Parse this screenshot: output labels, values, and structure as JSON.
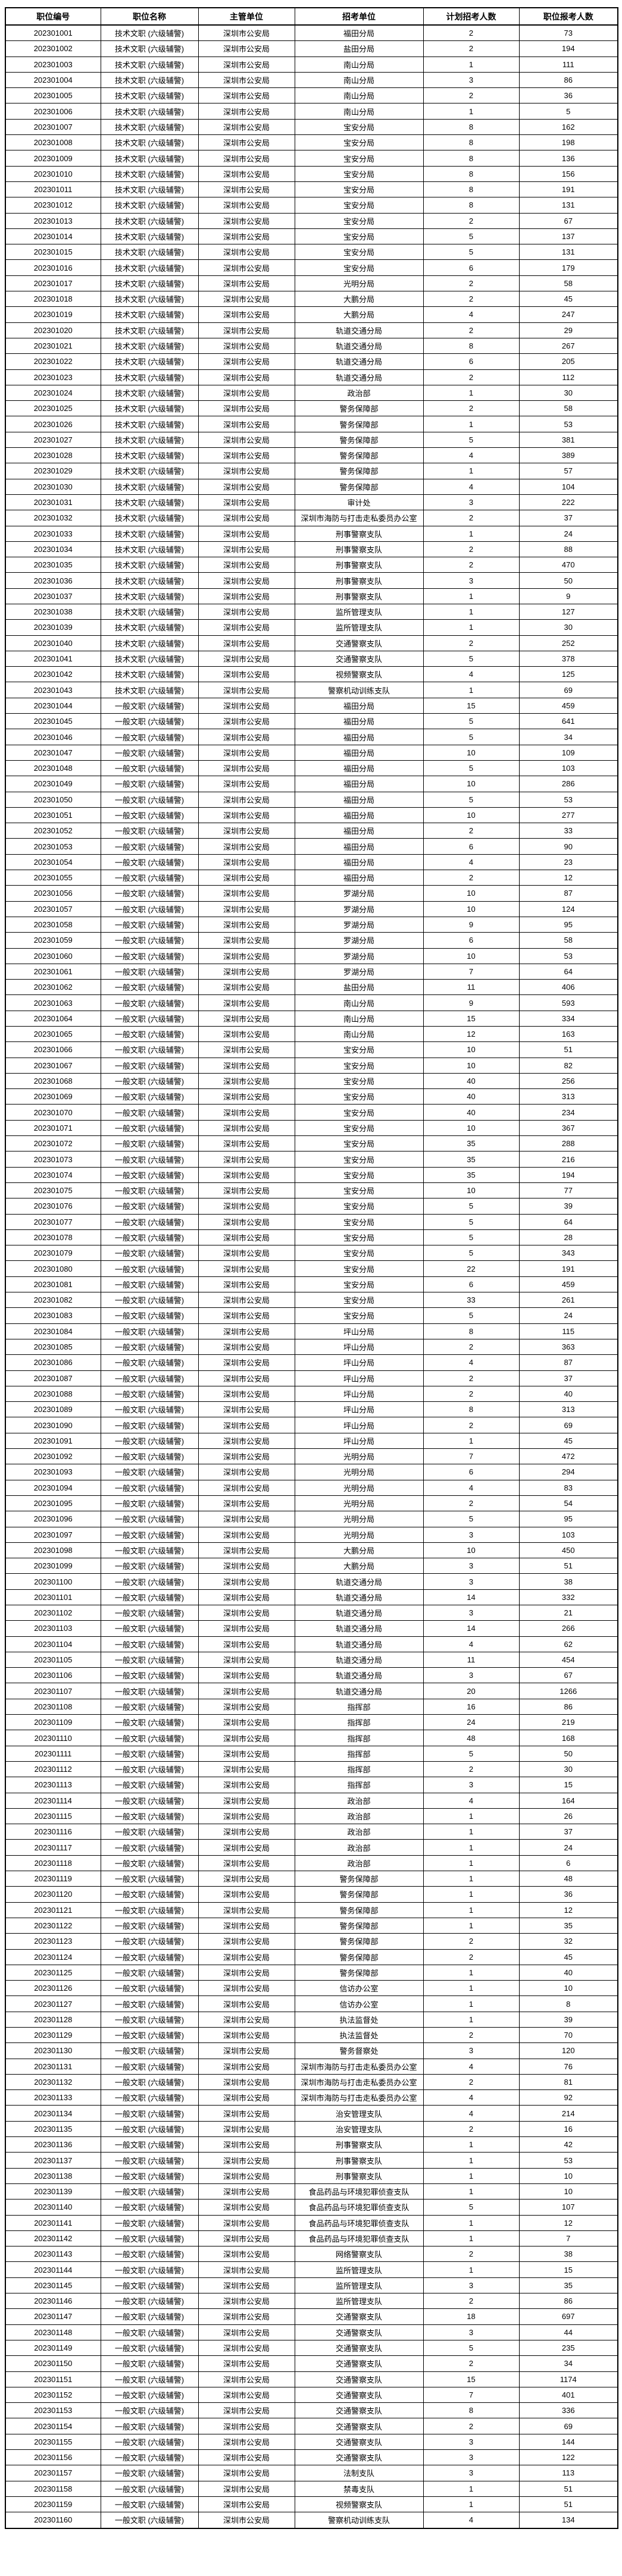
{
  "colors": {
    "background": "#ffffff",
    "border": "#000000",
    "text": "#000000"
  },
  "table": {
    "headers": [
      "职位编号",
      "职位名称",
      "主管单位",
      "招考单位",
      "计划招考人数",
      "职位报考人数"
    ],
    "org": "深圳市公安局",
    "job_titles": {
      "T": "技术文职 (六级辅警)",
      "G": "一般文职 (六级辅警)"
    },
    "rows": [
      [
        "202301001",
        "T",
        "福田分局",
        2,
        73
      ],
      [
        "202301002",
        "T",
        "盐田分局",
        2,
        194
      ],
      [
        "202301003",
        "T",
        "南山分局",
        1,
        111
      ],
      [
        "202301004",
        "T",
        "南山分局",
        3,
        86
      ],
      [
        "202301005",
        "T",
        "南山分局",
        2,
        36
      ],
      [
        "202301006",
        "T",
        "南山分局",
        1,
        5
      ],
      [
        "202301007",
        "T",
        "宝安分局",
        8,
        162
      ],
      [
        "202301008",
        "T",
        "宝安分局",
        8,
        198
      ],
      [
        "202301009",
        "T",
        "宝安分局",
        8,
        136
      ],
      [
        "202301010",
        "T",
        "宝安分局",
        8,
        156
      ],
      [
        "202301011",
        "T",
        "宝安分局",
        8,
        191
      ],
      [
        "202301012",
        "T",
        "宝安分局",
        8,
        131
      ],
      [
        "202301013",
        "T",
        "宝安分局",
        2,
        67
      ],
      [
        "202301014",
        "T",
        "宝安分局",
        5,
        137
      ],
      [
        "202301015",
        "T",
        "宝安分局",
        5,
        131
      ],
      [
        "202301016",
        "T",
        "宝安分局",
        6,
        179
      ],
      [
        "202301017",
        "T",
        "光明分局",
        2,
        58
      ],
      [
        "202301018",
        "T",
        "大鹏分局",
        2,
        45
      ],
      [
        "202301019",
        "T",
        "大鹏分局",
        4,
        247
      ],
      [
        "202301020",
        "T",
        "轨道交通分局",
        2,
        29
      ],
      [
        "202301021",
        "T",
        "轨道交通分局",
        8,
        267
      ],
      [
        "202301022",
        "T",
        "轨道交通分局",
        6,
        205
      ],
      [
        "202301023",
        "T",
        "轨道交通分局",
        2,
        112
      ],
      [
        "202301024",
        "T",
        "政治部",
        1,
        30
      ],
      [
        "202301025",
        "T",
        "警务保障部",
        2,
        58
      ],
      [
        "202301026",
        "T",
        "警务保障部",
        1,
        53
      ],
      [
        "202301027",
        "T",
        "警务保障部",
        5,
        381
      ],
      [
        "202301028",
        "T",
        "警务保障部",
        4,
        389
      ],
      [
        "202301029",
        "T",
        "警务保障部",
        1,
        57
      ],
      [
        "202301030",
        "T",
        "警务保障部",
        4,
        104
      ],
      [
        "202301031",
        "T",
        "审计处",
        3,
        222
      ],
      [
        "202301032",
        "T",
        "深圳市海防与打击走私委员办公室",
        2,
        37
      ],
      [
        "202301033",
        "T",
        "刑事警察支队",
        1,
        24
      ],
      [
        "202301034",
        "T",
        "刑事警察支队",
        2,
        88
      ],
      [
        "202301035",
        "T",
        "刑事警察支队",
        2,
        470
      ],
      [
        "202301036",
        "T",
        "刑事警察支队",
        3,
        50
      ],
      [
        "202301037",
        "T",
        "刑事警察支队",
        1,
        9
      ],
      [
        "202301038",
        "T",
        "监所管理支队",
        1,
        127
      ],
      [
        "202301039",
        "T",
        "监所管理支队",
        1,
        30
      ],
      [
        "202301040",
        "T",
        "交通警察支队",
        2,
        252
      ],
      [
        "202301041",
        "T",
        "交通警察支队",
        5,
        378
      ],
      [
        "202301042",
        "T",
        "视频警察支队",
        4,
        125
      ],
      [
        "202301043",
        "T",
        "警察机动训练支队",
        1,
        69
      ],
      [
        "202301044",
        "G",
        "福田分局",
        15,
        459
      ],
      [
        "202301045",
        "G",
        "福田分局",
        5,
        641
      ],
      [
        "202301046",
        "G",
        "福田分局",
        5,
        34
      ],
      [
        "202301047",
        "G",
        "福田分局",
        10,
        109
      ],
      [
        "202301048",
        "G",
        "福田分局",
        5,
        103
      ],
      [
        "202301049",
        "G",
        "福田分局",
        10,
        286
      ],
      [
        "202301050",
        "G",
        "福田分局",
        5,
        53
      ],
      [
        "202301051",
        "G",
        "福田分局",
        10,
        277
      ],
      [
        "202301052",
        "G",
        "福田分局",
        2,
        33
      ],
      [
        "202301053",
        "G",
        "福田分局",
        6,
        90
      ],
      [
        "202301054",
        "G",
        "福田分局",
        4,
        23
      ],
      [
        "202301055",
        "G",
        "福田分局",
        2,
        12
      ],
      [
        "202301056",
        "G",
        "罗湖分局",
        10,
        87
      ],
      [
        "202301057",
        "G",
        "罗湖分局",
        10,
        124
      ],
      [
        "202301058",
        "G",
        "罗湖分局",
        9,
        95
      ],
      [
        "202301059",
        "G",
        "罗湖分局",
        6,
        58
      ],
      [
        "202301060",
        "G",
        "罗湖分局",
        10,
        53
      ],
      [
        "202301061",
        "G",
        "罗湖分局",
        7,
        64
      ],
      [
        "202301062",
        "G",
        "盐田分局",
        11,
        406
      ],
      [
        "202301063",
        "G",
        "南山分局",
        9,
        593
      ],
      [
        "202301064",
        "G",
        "南山分局",
        15,
        334
      ],
      [
        "202301065",
        "G",
        "南山分局",
        12,
        163
      ],
      [
        "202301066",
        "G",
        "宝安分局",
        10,
        51
      ],
      [
        "202301067",
        "G",
        "宝安分局",
        10,
        82
      ],
      [
        "202301068",
        "G",
        "宝安分局",
        40,
        256
      ],
      [
        "202301069",
        "G",
        "宝安分局",
        40,
        313
      ],
      [
        "202301070",
        "G",
        "宝安分局",
        40,
        234
      ],
      [
        "202301071",
        "G",
        "宝安分局",
        10,
        367
      ],
      [
        "202301072",
        "G",
        "宝安分局",
        35,
        288
      ],
      [
        "202301073",
        "G",
        "宝安分局",
        35,
        216
      ],
      [
        "202301074",
        "G",
        "宝安分局",
        35,
        194
      ],
      [
        "202301075",
        "G",
        "宝安分局",
        10,
        77
      ],
      [
        "202301076",
        "G",
        "宝安分局",
        5,
        39
      ],
      [
        "202301077",
        "G",
        "宝安分局",
        5,
        64
      ],
      [
        "202301078",
        "G",
        "宝安分局",
        5,
        28
      ],
      [
        "202301079",
        "G",
        "宝安分局",
        5,
        343
      ],
      [
        "202301080",
        "G",
        "宝安分局",
        22,
        191
      ],
      [
        "202301081",
        "G",
        "宝安分局",
        6,
        459
      ],
      [
        "202301082",
        "G",
        "宝安分局",
        33,
        261
      ],
      [
        "202301083",
        "G",
        "宝安分局",
        5,
        24
      ],
      [
        "202301084",
        "G",
        "坪山分局",
        8,
        115
      ],
      [
        "202301085",
        "G",
        "坪山分局",
        2,
        363
      ],
      [
        "202301086",
        "G",
        "坪山分局",
        4,
        87
      ],
      [
        "202301087",
        "G",
        "坪山分局",
        2,
        37
      ],
      [
        "202301088",
        "G",
        "坪山分局",
        2,
        40
      ],
      [
        "202301089",
        "G",
        "坪山分局",
        8,
        313
      ],
      [
        "202301090",
        "G",
        "坪山分局",
        2,
        69
      ],
      [
        "202301091",
        "G",
        "坪山分局",
        1,
        45
      ],
      [
        "202301092",
        "G",
        "光明分局",
        7,
        472
      ],
      [
        "202301093",
        "G",
        "光明分局",
        6,
        294
      ],
      [
        "202301094",
        "G",
        "光明分局",
        4,
        83
      ],
      [
        "202301095",
        "G",
        "光明分局",
        2,
        54
      ],
      [
        "202301096",
        "G",
        "光明分局",
        5,
        95
      ],
      [
        "202301097",
        "G",
        "光明分局",
        3,
        103
      ],
      [
        "202301098",
        "G",
        "大鹏分局",
        10,
        450
      ],
      [
        "202301099",
        "G",
        "大鹏分局",
        3,
        51
      ],
      [
        "202301100",
        "G",
        "轨道交通分局",
        3,
        38
      ],
      [
        "202301101",
        "G",
        "轨道交通分局",
        14,
        332
      ],
      [
        "202301102",
        "G",
        "轨道交通分局",
        3,
        21
      ],
      [
        "202301103",
        "G",
        "轨道交通分局",
        14,
        266
      ],
      [
        "202301104",
        "G",
        "轨道交通分局",
        4,
        62
      ],
      [
        "202301105",
        "G",
        "轨道交通分局",
        11,
        454
      ],
      [
        "202301106",
        "G",
        "轨道交通分局",
        3,
        67
      ],
      [
        "202301107",
        "G",
        "轨道交通分局",
        20,
        1266
      ],
      [
        "202301108",
        "G",
        "指挥部",
        16,
        86
      ],
      [
        "202301109",
        "G",
        "指挥部",
        24,
        219
      ],
      [
        "202301110",
        "G",
        "指挥部",
        48,
        168
      ],
      [
        "202301111",
        "G",
        "指挥部",
        5,
        50
      ],
      [
        "202301112",
        "G",
        "指挥部",
        2,
        30
      ],
      [
        "202301113",
        "G",
        "指挥部",
        3,
        15
      ],
      [
        "202301114",
        "G",
        "政治部",
        4,
        164
      ],
      [
        "202301115",
        "G",
        "政治部",
        1,
        26
      ],
      [
        "202301116",
        "G",
        "政治部",
        1,
        37
      ],
      [
        "202301117",
        "G",
        "政治部",
        1,
        24
      ],
      [
        "202301118",
        "G",
        "政治部",
        1,
        6
      ],
      [
        "202301119",
        "G",
        "警务保障部",
        1,
        48
      ],
      [
        "202301120",
        "G",
        "警务保障部",
        1,
        36
      ],
      [
        "202301121",
        "G",
        "警务保障部",
        1,
        12
      ],
      [
        "202301122",
        "G",
        "警务保障部",
        1,
        35
      ],
      [
        "202301123",
        "G",
        "警务保障部",
        2,
        32
      ],
      [
        "202301124",
        "G",
        "警务保障部",
        2,
        45
      ],
      [
        "202301125",
        "G",
        "警务保障部",
        1,
        40
      ],
      [
        "202301126",
        "G",
        "信访办公室",
        1,
        10
      ],
      [
        "202301127",
        "G",
        "信访办公室",
        1,
        8
      ],
      [
        "202301128",
        "G",
        "执法监督处",
        1,
        39
      ],
      [
        "202301129",
        "G",
        "执法监督处",
        2,
        70
      ],
      [
        "202301130",
        "G",
        "警务督察处",
        3,
        120
      ],
      [
        "202301131",
        "G",
        "深圳市海防与打击走私委员办公室",
        4,
        76
      ],
      [
        "202301132",
        "G",
        "深圳市海防与打击走私委员办公室",
        2,
        81
      ],
      [
        "202301133",
        "G",
        "深圳市海防与打击走私委员办公室",
        4,
        92
      ],
      [
        "202301134",
        "G",
        "治安管理支队",
        4,
        214
      ],
      [
        "202301135",
        "G",
        "治安管理支队",
        2,
        16
      ],
      [
        "202301136",
        "G",
        "刑事警察支队",
        1,
        42
      ],
      [
        "202301137",
        "G",
        "刑事警察支队",
        1,
        53
      ],
      [
        "202301138",
        "G",
        "刑事警察支队",
        1,
        10
      ],
      [
        "202301139",
        "G",
        "食品药品与环境犯罪侦查支队",
        1,
        10
      ],
      [
        "202301140",
        "G",
        "食品药品与环境犯罪侦查支队",
        5,
        107
      ],
      [
        "202301141",
        "G",
        "食品药品与环境犯罪侦查支队",
        1,
        12
      ],
      [
        "202301142",
        "G",
        "食品药品与环境犯罪侦查支队",
        1,
        7
      ],
      [
        "202301143",
        "G",
        "网络警察支队",
        2,
        38
      ],
      [
        "202301144",
        "G",
        "监所管理支队",
        1,
        15
      ],
      [
        "202301145",
        "G",
        "监所管理支队",
        3,
        35
      ],
      [
        "202301146",
        "G",
        "监所管理支队",
        2,
        86
      ],
      [
        "202301147",
        "G",
        "交通警察支队",
        18,
        697
      ],
      [
        "202301148",
        "G",
        "交通警察支队",
        3,
        44
      ],
      [
        "202301149",
        "G",
        "交通警察支队",
        5,
        235
      ],
      [
        "202301150",
        "G",
        "交通警察支队",
        2,
        34
      ],
      [
        "202301151",
        "G",
        "交通警察支队",
        15,
        1174
      ],
      [
        "202301152",
        "G",
        "交通警察支队",
        7,
        401
      ],
      [
        "202301153",
        "G",
        "交通警察支队",
        8,
        336
      ],
      [
        "202301154",
        "G",
        "交通警察支队",
        2,
        69
      ],
      [
        "202301155",
        "G",
        "交通警察支队",
        3,
        144
      ],
      [
        "202301156",
        "G",
        "交通警察支队",
        3,
        122
      ],
      [
        "202301157",
        "G",
        "法制支队",
        3,
        113
      ],
      [
        "202301158",
        "G",
        "禁毒支队",
        1,
        51
      ],
      [
        "202301159",
        "G",
        "视频警察支队",
        1,
        51
      ],
      [
        "202301160",
        "G",
        "警察机动训练支队",
        4,
        134
      ]
    ]
  }
}
